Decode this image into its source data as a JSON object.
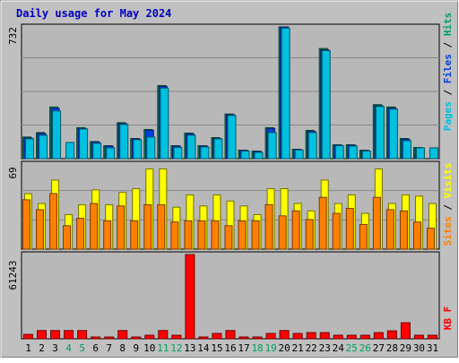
{
  "chart_data": [
    {
      "type": "bar",
      "title": "Daily usage for May 2024",
      "y_tick_label": "732",
      "legend": [
        {
          "label": "Pages",
          "color": "#00C0E0"
        },
        {
          "label": "Files",
          "color": "#0040E0"
        },
        {
          "label": "Hits",
          "color": "#00A060"
        }
      ],
      "categories": [
        "1",
        "2",
        "3",
        "4",
        "5",
        "6",
        "7",
        "8",
        "9",
        "10",
        "11",
        "12",
        "13",
        "14",
        "15",
        "16",
        "17",
        "18",
        "19",
        "20",
        "21",
        "22",
        "23",
        "24",
        "25",
        "26",
        "27",
        "28",
        "29",
        "30",
        "31"
      ],
      "weekend_days": [
        "4",
        "5",
        "11",
        "12",
        "18",
        "19",
        "25",
        "26"
      ],
      "ylim": [
        0,
        732
      ],
      "series": [
        {
          "name": "Hits",
          "color": "#00A060",
          "values": [
            120,
            145,
            287,
            0,
            172,
            95,
            72,
            200,
            112,
            162,
            406,
            72,
            142,
            72,
            117,
            248,
            47,
            42,
            172,
            732,
            52,
            157,
            612,
            77,
            77,
            47,
            300,
            287,
            112,
            62,
            0
          ]
        },
        {
          "name": "Files",
          "color": "#0040E0",
          "values": [
            115,
            140,
            280,
            0,
            168,
            92,
            70,
            195,
            110,
            158,
            402,
            70,
            138,
            70,
            112,
            244,
            46,
            40,
            168,
            732,
            50,
            152,
            605,
            75,
            75,
            45,
            294,
            282,
            108,
            60,
            0
          ]
        },
        {
          "name": "Pages",
          "color": "#00C0E0",
          "values": [
            110,
            130,
            265,
            90,
            165,
            85,
            60,
            190,
            105,
            120,
            392,
            62,
            130,
            65,
            110,
            240,
            42,
            35,
            145,
            725,
            48,
            145,
            600,
            72,
            70,
            42,
            290,
            275,
            100,
            60,
            60
          ]
        }
      ]
    },
    {
      "type": "bar",
      "y_tick_label": "69",
      "legend": [
        {
          "label": "Sites",
          "color": "#FF8000"
        },
        {
          "label": "Visits",
          "color": "#FFFF00"
        }
      ],
      "categories": [
        "1",
        "2",
        "3",
        "4",
        "5",
        "6",
        "7",
        "8",
        "9",
        "10",
        "11",
        "12",
        "13",
        "14",
        "15",
        "16",
        "17",
        "18",
        "19",
        "20",
        "21",
        "22",
        "23",
        "24",
        "25",
        "26",
        "27",
        "28",
        "29",
        "30",
        "31"
      ],
      "ylim": [
        0,
        69
      ],
      "series": [
        {
          "name": "Visits",
          "color": "#FFFF00",
          "values": [
            45,
            37,
            56,
            28,
            36,
            48,
            36,
            46,
            49,
            65,
            65,
            34,
            44,
            35,
            44,
            39,
            35,
            28,
            49,
            49,
            37,
            31,
            56,
            37,
            44,
            29,
            65,
            37,
            44,
            43,
            37
          ]
        },
        {
          "name": "Sites",
          "color": "#FF8000",
          "values": [
            40,
            32,
            45,
            19,
            25,
            37,
            23,
            35,
            23,
            36,
            36,
            22,
            23,
            23,
            23,
            19,
            23,
            23,
            36,
            27,
            31,
            24,
            42,
            29,
            33,
            20,
            42,
            32,
            31,
            22,
            17
          ]
        }
      ]
    },
    {
      "type": "bar",
      "y_tick_label": "61243",
      "legend": [
        {
          "label": "KB F",
          "color": "#FF0000"
        }
      ],
      "categories": [
        "1",
        "2",
        "3",
        "4",
        "5",
        "6",
        "7",
        "8",
        "9",
        "10",
        "11",
        "12",
        "13",
        "14",
        "15",
        "16",
        "17",
        "18",
        "19",
        "20",
        "21",
        "22",
        "23",
        "24",
        "25",
        "26",
        "27",
        "28",
        "29",
        "30",
        "31"
      ],
      "ylim": [
        0,
        61243
      ],
      "series": [
        {
          "name": "KB F",
          "color": "#FF0000",
          "values": [
            3200,
            6000,
            6000,
            6000,
            6000,
            1300,
            1300,
            6000,
            1300,
            2600,
            6000,
            2600,
            61243,
            1300,
            3900,
            6000,
            1300,
            1300,
            3900,
            6000,
            3900,
            4500,
            4500,
            2600,
            2600,
            2600,
            4500,
            5800,
            11700,
            2600,
            2600
          ]
        }
      ]
    }
  ]
}
